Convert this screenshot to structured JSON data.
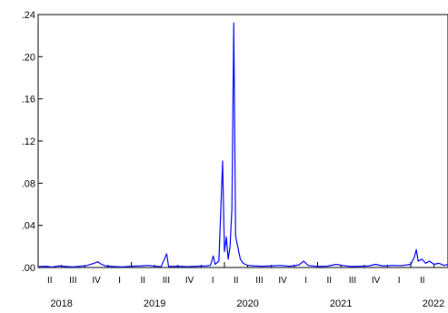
{
  "chart_data": {
    "type": "line",
    "title": "",
    "xlabel": "",
    "ylabel": "",
    "ylim": [
      0,
      0.24
    ],
    "y_ticks": [
      {
        "value": 0.0,
        "label": ".00"
      },
      {
        "value": 0.04,
        "label": ".04"
      },
      {
        "value": 0.08,
        "label": ".08"
      },
      {
        "value": 0.12,
        "label": ".12"
      },
      {
        "value": 0.16,
        "label": ".16"
      },
      {
        "value": 0.2,
        "label": ".20"
      },
      {
        "value": 0.24,
        "label": ".24"
      }
    ],
    "xlim": [
      2018.0,
      2022.4
    ],
    "quarter_labels": [
      {
        "x": 2018.125,
        "label": "II"
      },
      {
        "x": 2018.375,
        "label": "III"
      },
      {
        "x": 2018.625,
        "label": "IV"
      },
      {
        "x": 2018.875,
        "label": "I"
      },
      {
        "x": 2019.125,
        "label": "II"
      },
      {
        "x": 2019.375,
        "label": "III"
      },
      {
        "x": 2019.625,
        "label": "IV"
      },
      {
        "x": 2019.875,
        "label": "I"
      },
      {
        "x": 2020.125,
        "label": "II"
      },
      {
        "x": 2020.375,
        "label": "III"
      },
      {
        "x": 2020.625,
        "label": "IV"
      },
      {
        "x": 2020.875,
        "label": "I"
      },
      {
        "x": 2021.125,
        "label": "II"
      },
      {
        "x": 2021.375,
        "label": "III"
      },
      {
        "x": 2021.625,
        "label": "IV"
      },
      {
        "x": 2021.875,
        "label": "I"
      },
      {
        "x": 2022.125,
        "label": "II"
      }
    ],
    "year_labels": [
      {
        "x": 2018.25,
        "label": "2018"
      },
      {
        "x": 2019.25,
        "label": "2019"
      },
      {
        "x": 2020.25,
        "label": "2020"
      },
      {
        "x": 2021.25,
        "label": "2021"
      },
      {
        "x": 2022.25,
        "label": "2022"
      }
    ],
    "series": [
      {
        "color": "#0000ff",
        "points": [
          [
            2018.0,
            0.0008
          ],
          [
            2018.08,
            0.0012
          ],
          [
            2018.15,
            0.0005
          ],
          [
            2018.22,
            0.0015
          ],
          [
            2018.3,
            0.001
          ],
          [
            2018.38,
            0.0006
          ],
          [
            2018.45,
            0.0012
          ],
          [
            2018.52,
            0.0018
          ],
          [
            2018.56,
            0.003
          ],
          [
            2018.6,
            0.004
          ],
          [
            2018.64,
            0.0055
          ],
          [
            2018.67,
            0.0035
          ],
          [
            2018.72,
            0.0015
          ],
          [
            2018.8,
            0.001
          ],
          [
            2018.9,
            0.0006
          ],
          [
            2019.0,
            0.0012
          ],
          [
            2019.1,
            0.0015
          ],
          [
            2019.18,
            0.002
          ],
          [
            2019.26,
            0.0012
          ],
          [
            2019.32,
            0.0008
          ],
          [
            2019.38,
            0.013
          ],
          [
            2019.4,
            0.001
          ],
          [
            2019.5,
            0.0012
          ],
          [
            2019.6,
            0.0008
          ],
          [
            2019.7,
            0.0012
          ],
          [
            2019.8,
            0.0015
          ],
          [
            2019.85,
            0.002
          ],
          [
            2019.88,
            0.011
          ],
          [
            2019.9,
            0.003
          ],
          [
            2019.94,
            0.006
          ],
          [
            2019.98,
            0.101
          ],
          [
            2020.0,
            0.015
          ],
          [
            2020.02,
            0.029
          ],
          [
            2020.04,
            0.008
          ],
          [
            2020.06,
            0.02
          ],
          [
            2020.08,
            0.056
          ],
          [
            2020.1,
            0.232
          ],
          [
            2020.12,
            0.03
          ],
          [
            2020.14,
            0.021
          ],
          [
            2020.17,
            0.008
          ],
          [
            2020.2,
            0.004
          ],
          [
            2020.25,
            0.002
          ],
          [
            2020.32,
            0.0015
          ],
          [
            2020.4,
            0.0012
          ],
          [
            2020.5,
            0.0015
          ],
          [
            2020.6,
            0.002
          ],
          [
            2020.7,
            0.0012
          ],
          [
            2020.8,
            0.0025
          ],
          [
            2020.85,
            0.006
          ],
          [
            2020.9,
            0.002
          ],
          [
            2021.0,
            0.001
          ],
          [
            2021.1,
            0.0012
          ],
          [
            2021.2,
            0.003
          ],
          [
            2021.28,
            0.0018
          ],
          [
            2021.35,
            0.001
          ],
          [
            2021.45,
            0.0012
          ],
          [
            2021.55,
            0.0015
          ],
          [
            2021.62,
            0.003
          ],
          [
            2021.7,
            0.0015
          ],
          [
            2021.8,
            0.002
          ],
          [
            2021.9,
            0.0018
          ],
          [
            2022.0,
            0.003
          ],
          [
            2022.04,
            0.01
          ],
          [
            2022.06,
            0.017
          ],
          [
            2022.08,
            0.006
          ],
          [
            2022.12,
            0.008
          ],
          [
            2022.16,
            0.004
          ],
          [
            2022.2,
            0.006
          ],
          [
            2022.25,
            0.003
          ],
          [
            2022.3,
            0.004
          ],
          [
            2022.36,
            0.002
          ],
          [
            2022.4,
            0.003
          ]
        ]
      }
    ]
  }
}
